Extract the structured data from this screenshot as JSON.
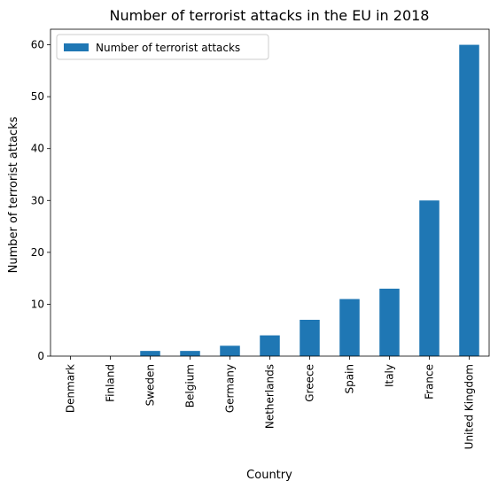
{
  "chart_data": {
    "type": "bar",
    "title": "Number of terrorist attacks in the EU in 2018",
    "xlabel": "Country",
    "ylabel": "Number of terrorist attacks",
    "categories": [
      "Denmark",
      "Finland",
      "Sweden",
      "Belgium",
      "Germany",
      "Netherlands",
      "Greece",
      "Spain",
      "Italy",
      "France",
      "United Kingdom"
    ],
    "series": [
      {
        "name": "Number of terrorist attacks",
        "values": [
          0,
          0,
          1,
          1,
          2,
          4,
          7,
          11,
          13,
          30,
          60
        ],
        "color": "#1f77b4"
      }
    ],
    "ylim": [
      0,
      63
    ],
    "yticks": [
      0,
      10,
      20,
      30,
      40,
      50,
      60
    ],
    "grid": false,
    "legend_position": "top-left"
  }
}
